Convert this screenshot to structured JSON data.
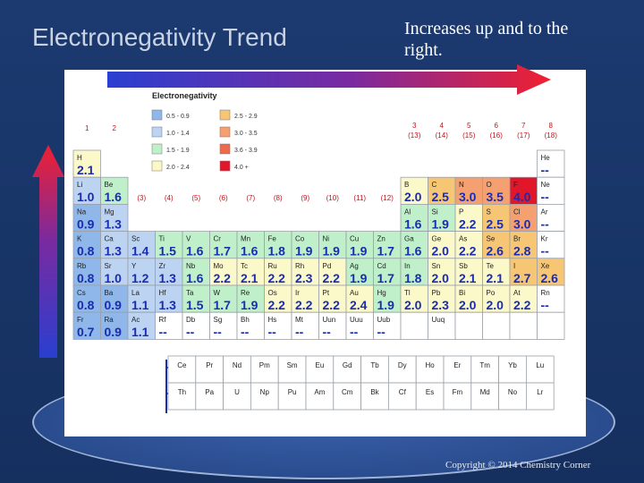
{
  "slide": {
    "title": "Electronegativity Trend",
    "caption": "Increases up and to the right.",
    "copyright": "Copyright © 2014 Chemistry Corner"
  },
  "table": {
    "heading": "Electronegativity",
    "legend": [
      {
        "label": "0.5 - 0.9",
        "color": "#8fb7ea"
      },
      {
        "label": "1.0 - 1.4",
        "color": "#bcd3f2"
      },
      {
        "label": "1.5 - 1.9",
        "color": "#bff0c9"
      },
      {
        "label": "2.0 - 2.4",
        "color": "#fbf8c9"
      },
      {
        "label": "2.5 - 2.9",
        "color": "#f6c675"
      },
      {
        "label": "3.0 - 3.5",
        "color": "#f4a070"
      },
      {
        "label": "3.6 - 3.9",
        "color": "#ee6a4c"
      },
      {
        "label": "4.0 +",
        "color": "#e2162b"
      }
    ],
    "group_labels": [
      {
        "text": "1",
        "col": 1,
        "row": 0
      },
      {
        "text": "2",
        "col": 2,
        "row": 0
      },
      {
        "text": "(3)",
        "col": 3,
        "row": 2
      },
      {
        "text": "(4)",
        "col": 4,
        "row": 2
      },
      {
        "text": "(5)",
        "col": 5,
        "row": 2
      },
      {
        "text": "(6)",
        "col": 6,
        "row": 2
      },
      {
        "text": "(7)",
        "col": 7,
        "row": 2
      },
      {
        "text": "(8)",
        "col": 8,
        "row": 2
      },
      {
        "text": "(9)",
        "col": 9,
        "row": 2
      },
      {
        "text": "(10)",
        "col": 10,
        "row": 2
      },
      {
        "text": "(11)",
        "col": 11,
        "row": 2
      },
      {
        "text": "(12)",
        "col": 12,
        "row": 2
      },
      {
        "text": "3\n(13)",
        "col": 13,
        "row": 0
      },
      {
        "text": "4\n(14)",
        "col": 14,
        "row": 0
      },
      {
        "text": "5\n(15)",
        "col": 15,
        "row": 0
      },
      {
        "text": "6\n(16)",
        "col": 16,
        "row": 0
      },
      {
        "text": "7\n(17)",
        "col": 17,
        "row": 0
      },
      {
        "text": "8\n(18)",
        "col": 18,
        "row": 0
      }
    ],
    "elements": [
      {
        "sym": "H",
        "en": "2.1",
        "col": 1,
        "row": 1
      },
      {
        "sym": "He",
        "en": "--",
        "col": 18,
        "row": 1
      },
      {
        "sym": "Li",
        "en": "1.0",
        "col": 1,
        "row": 2
      },
      {
        "sym": "Be",
        "en": "1.6",
        "col": 2,
        "row": 2
      },
      {
        "sym": "B",
        "en": "2.0",
        "col": 13,
        "row": 2
      },
      {
        "sym": "C",
        "en": "2.5",
        "col": 14,
        "row": 2
      },
      {
        "sym": "N",
        "en": "3.0",
        "col": 15,
        "row": 2
      },
      {
        "sym": "O",
        "en": "3.5",
        "col": 16,
        "row": 2
      },
      {
        "sym": "F",
        "en": "4.0",
        "col": 17,
        "row": 2
      },
      {
        "sym": "Ne",
        "en": "--",
        "col": 18,
        "row": 2
      },
      {
        "sym": "Na",
        "en": "0.9",
        "col": 1,
        "row": 3
      },
      {
        "sym": "Mg",
        "en": "1.3",
        "col": 2,
        "row": 3
      },
      {
        "sym": "Al",
        "en": "1.6",
        "col": 13,
        "row": 3
      },
      {
        "sym": "Si",
        "en": "1.9",
        "col": 14,
        "row": 3
      },
      {
        "sym": "P",
        "en": "2.2",
        "col": 15,
        "row": 3
      },
      {
        "sym": "S",
        "en": "2.5",
        "col": 16,
        "row": 3
      },
      {
        "sym": "Cl",
        "en": "3.0",
        "col": 17,
        "row": 3
      },
      {
        "sym": "Ar",
        "en": "--",
        "col": 18,
        "row": 3
      },
      {
        "sym": "K",
        "en": "0.8",
        "col": 1,
        "row": 4
      },
      {
        "sym": "Ca",
        "en": "1.3",
        "col": 2,
        "row": 4
      },
      {
        "sym": "Sc",
        "en": "1.4",
        "col": 3,
        "row": 4
      },
      {
        "sym": "Ti",
        "en": "1.5",
        "col": 4,
        "row": 4
      },
      {
        "sym": "V",
        "en": "1.6",
        "col": 5,
        "row": 4
      },
      {
        "sym": "Cr",
        "en": "1.7",
        "col": 6,
        "row": 4
      },
      {
        "sym": "Mn",
        "en": "1.6",
        "col": 7,
        "row": 4
      },
      {
        "sym": "Fe",
        "en": "1.8",
        "col": 8,
        "row": 4
      },
      {
        "sym": "Co",
        "en": "1.9",
        "col": 9,
        "row": 4
      },
      {
        "sym": "Ni",
        "en": "1.9",
        "col": 10,
        "row": 4
      },
      {
        "sym": "Cu",
        "en": "1.9",
        "col": 11,
        "row": 4
      },
      {
        "sym": "Zn",
        "en": "1.7",
        "col": 12,
        "row": 4
      },
      {
        "sym": "Ga",
        "en": "1.6",
        "col": 13,
        "row": 4
      },
      {
        "sym": "Ge",
        "en": "2.0",
        "col": 14,
        "row": 4
      },
      {
        "sym": "As",
        "en": "2.2",
        "col": 15,
        "row": 4
      },
      {
        "sym": "Se",
        "en": "2.6",
        "col": 16,
        "row": 4
      },
      {
        "sym": "Br",
        "en": "2.8",
        "col": 17,
        "row": 4
      },
      {
        "sym": "Kr",
        "en": "--",
        "col": 18,
        "row": 4
      },
      {
        "sym": "Rb",
        "en": "0.8",
        "col": 1,
        "row": 5
      },
      {
        "sym": "Sr",
        "en": "1.0",
        "col": 2,
        "row": 5
      },
      {
        "sym": "Y",
        "en": "1.2",
        "col": 3,
        "row": 5
      },
      {
        "sym": "Zr",
        "en": "1.3",
        "col": 4,
        "row": 5
      },
      {
        "sym": "Nb",
        "en": "1.6",
        "col": 5,
        "row": 5
      },
      {
        "sym": "Mo",
        "en": "2.2",
        "col": 6,
        "row": 5
      },
      {
        "sym": "Tc",
        "en": "2.1",
        "col": 7,
        "row": 5
      },
      {
        "sym": "Ru",
        "en": "2.2",
        "col": 8,
        "row": 5
      },
      {
        "sym": "Rh",
        "en": "2.3",
        "col": 9,
        "row": 5
      },
      {
        "sym": "Pd",
        "en": "2.2",
        "col": 10,
        "row": 5
      },
      {
        "sym": "Ag",
        "en": "1.9",
        "col": 11,
        "row": 5
      },
      {
        "sym": "Cd",
        "en": "1.7",
        "col": 12,
        "row": 5
      },
      {
        "sym": "In",
        "en": "1.8",
        "col": 13,
        "row": 5
      },
      {
        "sym": "Sn",
        "en": "2.0",
        "col": 14,
        "row": 5
      },
      {
        "sym": "Sb",
        "en": "2.1",
        "col": 15,
        "row": 5
      },
      {
        "sym": "Te",
        "en": "2.1",
        "col": 16,
        "row": 5
      },
      {
        "sym": "I",
        "en": "2.7",
        "col": 17,
        "row": 5
      },
      {
        "sym": "Xe",
        "en": "2.6",
        "col": 18,
        "row": 5
      },
      {
        "sym": "Cs",
        "en": "0.8",
        "col": 1,
        "row": 6
      },
      {
        "sym": "Ba",
        "en": "0.9",
        "col": 2,
        "row": 6
      },
      {
        "sym": "La",
        "en": "1.1",
        "col": 3,
        "row": 6
      },
      {
        "sym": "Hf",
        "en": "1.3",
        "col": 4,
        "row": 6
      },
      {
        "sym": "Ta",
        "en": "1.5",
        "col": 5,
        "row": 6
      },
      {
        "sym": "W",
        "en": "1.7",
        "col": 6,
        "row": 6
      },
      {
        "sym": "Re",
        "en": "1.9",
        "col": 7,
        "row": 6
      },
      {
        "sym": "Os",
        "en": "2.2",
        "col": 8,
        "row": 6
      },
      {
        "sym": "Ir",
        "en": "2.2",
        "col": 9,
        "row": 6
      },
      {
        "sym": "Pt",
        "en": "2.2",
        "col": 10,
        "row": 6
      },
      {
        "sym": "Au",
        "en": "2.4",
        "col": 11,
        "row": 6
      },
      {
        "sym": "Hg",
        "en": "1.9",
        "col": 12,
        "row": 6
      },
      {
        "sym": "Tl",
        "en": "2.0",
        "col": 13,
        "row": 6
      },
      {
        "sym": "Pb",
        "en": "2.3",
        "col": 14,
        "row": 6
      },
      {
        "sym": "Bi",
        "en": "2.0",
        "col": 15,
        "row": 6
      },
      {
        "sym": "Po",
        "en": "2.0",
        "col": 16,
        "row": 6
      },
      {
        "sym": "At",
        "en": "2.2",
        "col": 17,
        "row": 6
      },
      {
        "sym": "Rn",
        "en": "--",
        "col": 18,
        "row": 6
      },
      {
        "sym": "Fr",
        "en": "0.7",
        "col": 1,
        "row": 7
      },
      {
        "sym": "Ra",
        "en": "0.9",
        "col": 2,
        "row": 7
      },
      {
        "sym": "Ac",
        "en": "1.1",
        "col": 3,
        "row": 7
      },
      {
        "sym": "Rf",
        "en": "--",
        "col": 4,
        "row": 7
      },
      {
        "sym": "Db",
        "en": "--",
        "col": 5,
        "row": 7
      },
      {
        "sym": "Sg",
        "en": "--",
        "col": 6,
        "row": 7
      },
      {
        "sym": "Bh",
        "en": "--",
        "col": 7,
        "row": 7
      },
      {
        "sym": "Hs",
        "en": "--",
        "col": 8,
        "row": 7
      },
      {
        "sym": "Mt",
        "en": "--",
        "col": 9,
        "row": 7
      },
      {
        "sym": "Uun",
        "en": "--",
        "col": 10,
        "row": 7
      },
      {
        "sym": "Uuu",
        "en": "--",
        "col": 11,
        "row": 7
      },
      {
        "sym": "Uub",
        "en": "--",
        "col": 12,
        "row": 7
      },
      {
        "sym": "Uuq",
        "en": "",
        "col": 14,
        "row": 7
      }
    ],
    "lanthanides": [
      "Ce",
      "Pr",
      "Nd",
      "Pm",
      "Sm",
      "Eu",
      "Gd",
      "Tb",
      "Dy",
      "Ho",
      "Er",
      "Tm",
      "Yb",
      "Lu"
    ],
    "actinides": [
      "Th",
      "Pa",
      "U",
      "Np",
      "Pu",
      "Am",
      "Cm",
      "Bk",
      "Cf",
      "Es",
      "Fm",
      "Md",
      "No",
      "Lr"
    ]
  },
  "colors": {
    "arrow_right": "#f02030",
    "arrow_up": "#f02030"
  }
}
